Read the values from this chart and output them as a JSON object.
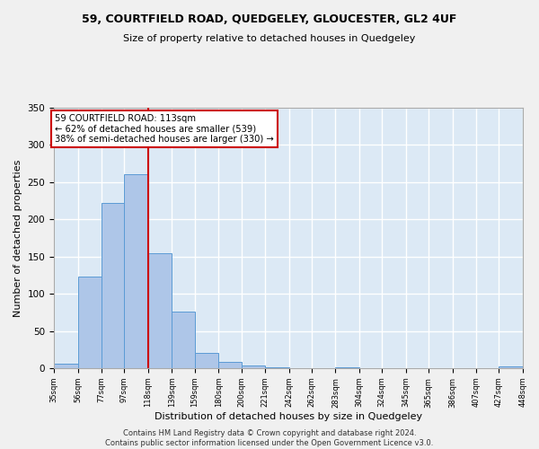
{
  "title": "59, COURTFIELD ROAD, QUEDGELEY, GLOUCESTER, GL2 4UF",
  "subtitle": "Size of property relative to detached houses in Quedgeley",
  "xlabel": "Distribution of detached houses by size in Quedgeley",
  "ylabel": "Number of detached properties",
  "footer_line1": "Contains HM Land Registry data © Crown copyright and database right 2024.",
  "footer_line2": "Contains public sector information licensed under the Open Government Licence v3.0.",
  "annotation_line1": "59 COURTFIELD ROAD: 113sqm",
  "annotation_line2": "← 62% of detached houses are smaller (539)",
  "annotation_line3": "38% of semi-detached houses are larger (330) →",
  "bar_edges": [
    35,
    56,
    77,
    97,
    118,
    139,
    159,
    180,
    200,
    221,
    242,
    262,
    283,
    304,
    324,
    345,
    365,
    386,
    407,
    427,
    448
  ],
  "bar_heights": [
    6,
    123,
    222,
    261,
    154,
    76,
    20,
    8,
    4,
    1,
    0,
    0,
    1,
    0,
    0,
    0,
    0,
    0,
    0,
    2
  ],
  "bar_color": "#aec6e8",
  "bar_edge_color": "#5b9bd5",
  "vline_x": 118,
  "vline_color": "#cc0000",
  "ylim": [
    0,
    350
  ],
  "yticks": [
    0,
    50,
    100,
    150,
    200,
    250,
    300,
    350
  ],
  "background_color": "#dce9f5",
  "fig_background_color": "#f0f0f0",
  "grid_color": "#ffffff",
  "annotation_box_color": "#ffffff",
  "annotation_box_edge": "#cc0000",
  "title_fontsize": 9,
  "subtitle_fontsize": 8,
  "footer_fontsize": 6,
  "ylabel_fontsize": 8,
  "xlabel_fontsize": 8
}
